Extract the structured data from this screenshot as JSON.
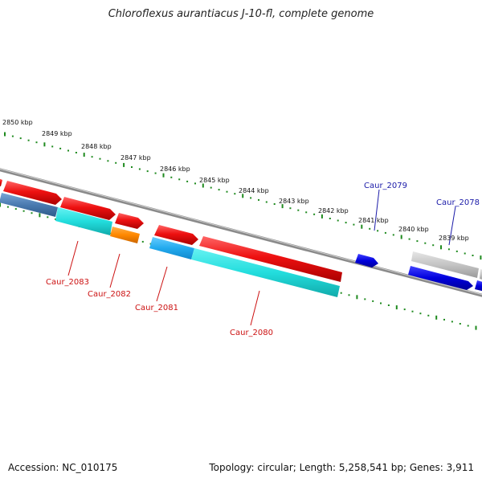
{
  "title": "Chloroflexus aurantiacus J-10-fl, complete genome",
  "footer": {
    "accession": "Accession: NC_010175",
    "summary": "Topology: circular; Length: 5,258,541 bp; Genes: 3,911"
  },
  "scale_labels": [
    "2850 kbp",
    "2849 kbp",
    "2848 kbp",
    "2847 kbp",
    "2846 kbp",
    "2845 kbp",
    "2844 kbp",
    "2843 kbp",
    "2842 kbp",
    "2841 kbp",
    "2840 kbp",
    "2839 kbp"
  ],
  "gene_labels": [
    {
      "name": "Caur_2083",
      "color": "#cc1111"
    },
    {
      "name": "Caur_2082",
      "color": "#cc1111"
    },
    {
      "name": "Caur_2081",
      "color": "#cc1111"
    },
    {
      "name": "Caur_2080",
      "color": "#cc1111"
    },
    {
      "name": "Caur_2079",
      "color": "#1a1aa8"
    },
    {
      "name": "Caur_2078",
      "color": "#1a1aa8"
    }
  ],
  "colors": {
    "backbone": "#8a8a8a",
    "tick_green": "#1e8a1e",
    "cds_red": "#ee1111",
    "cds_blue": "#0000dd",
    "gene_cyan": "#22dddd",
    "gene_steel": "#4a7ab0",
    "gene_orange": "#ff8800",
    "gene_gray": "#c0c0c0"
  }
}
